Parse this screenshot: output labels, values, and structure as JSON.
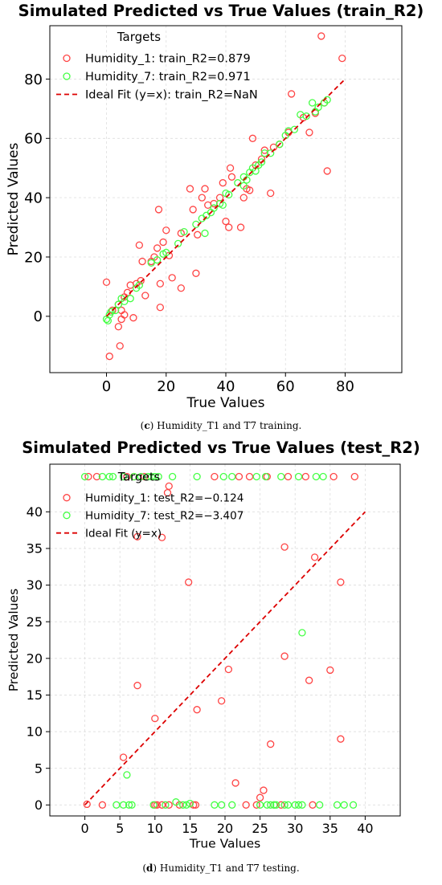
{
  "charts": [
    {
      "title": "Simulated Predicted vs True Values (train_R2)",
      "caption_letter": "c",
      "caption_text": " Humidity_T1 and T7 training.",
      "chart_data": {
        "type": "scatter",
        "title": "Simulated Predicted vs True Values (train_R2)",
        "xlabel": "True Values",
        "ylabel": "Predicted Values",
        "xlim": [
          -19,
          99
        ],
        "ylim": [
          -19,
          98
        ],
        "xticks": [
          0,
          20,
          40,
          60,
          80
        ],
        "yticks": [
          0,
          20,
          40,
          60,
          80
        ],
        "grid": true,
        "legend_title": "Targets",
        "legend_position": "top-left",
        "series": [
          {
            "name": "Humidity_1: train_R2=0.879",
            "color": "#ff4444",
            "marker": "open-circle",
            "points": [
              [
                0,
                11.5
              ],
              [
                1,
                -13.5
              ],
              [
                2,
                2
              ],
              [
                4,
                4
              ],
              [
                4,
                -3.5
              ],
              [
                4.5,
                -10
              ],
              [
                5,
                -1
              ],
              [
                5,
                2
              ],
              [
                6,
                6.5
              ],
              [
                6,
                0.5
              ],
              [
                7,
                8
              ],
              [
                8,
                10.5
              ],
              [
                9,
                -0.5
              ],
              [
                10,
                11
              ],
              [
                11,
                24
              ],
              [
                11.5,
                12
              ],
              [
                12,
                18.5
              ],
              [
                13,
                7
              ],
              [
                15,
                18.5
              ],
              [
                16,
                20
              ],
              [
                17,
                23
              ],
              [
                17.5,
                36
              ],
              [
                18,
                11
              ],
              [
                18,
                3
              ],
              [
                19,
                25
              ],
              [
                20,
                29
              ],
              [
                21,
                20.5
              ],
              [
                22,
                13
              ],
              [
                25,
                28
              ],
              [
                25,
                9.5
              ],
              [
                28,
                43
              ],
              [
                29,
                36
              ],
              [
                30,
                14.5
              ],
              [
                30.5,
                27.5
              ],
              [
                32,
                40
              ],
              [
                33,
                43
              ],
              [
                34,
                37.5
              ],
              [
                36,
                38
              ],
              [
                38,
                40
              ],
              [
                39,
                45
              ],
              [
                40,
                32
              ],
              [
                41,
                30
              ],
              [
                41.5,
                50
              ],
              [
                42,
                47
              ],
              [
                45,
                30
              ],
              [
                46,
                40
              ],
              [
                47,
                43
              ],
              [
                48,
                42.5
              ],
              [
                49,
                60
              ],
              [
                50,
                51
              ],
              [
                52,
                53
              ],
              [
                53,
                56
              ],
              [
                55,
                41.5
              ],
              [
                56,
                57
              ],
              [
                58,
                58
              ],
              [
                61,
                62
              ],
              [
                62,
                75
              ],
              [
                66,
                67
              ],
              [
                68,
                62
              ],
              [
                70,
                68.5
              ],
              [
                72,
                94.5
              ],
              [
                73,
                72
              ],
              [
                74,
                49
              ],
              [
                79,
                87
              ]
            ]
          },
          {
            "name": "Humidity_7: train_R2=0.971",
            "color": "#44ff44",
            "marker": "open-circle",
            "points": [
              [
                0,
                -1
              ],
              [
                0.5,
                -1.5
              ],
              [
                1,
                0.5
              ],
              [
                1.5,
                1.5
              ],
              [
                3,
                2
              ],
              [
                4,
                4
              ],
              [
                5,
                6
              ],
              [
                6,
                5
              ],
              [
                8,
                6
              ],
              [
                10,
                9.5
              ],
              [
                11,
                10.5
              ],
              [
                15,
                18
              ],
              [
                17,
                19
              ],
              [
                19,
                21
              ],
              [
                20,
                21.5
              ],
              [
                24,
                24.5
              ],
              [
                26,
                28.5
              ],
              [
                30,
                31
              ],
              [
                32,
                33
              ],
              [
                33,
                28
              ],
              [
                33.5,
                34
              ],
              [
                35,
                35
              ],
              [
                36,
                36.5
              ],
              [
                38,
                38
              ],
              [
                39,
                37.5
              ],
              [
                40,
                41.5
              ],
              [
                41,
                41
              ],
              [
                44,
                45
              ],
              [
                46,
                47
              ],
              [
                46,
                44
              ],
              [
                47,
                46
              ],
              [
                48,
                48.5
              ],
              [
                49,
                50
              ],
              [
                50,
                49
              ],
              [
                51,
                51
              ],
              [
                52,
                52
              ],
              [
                53,
                55
              ],
              [
                55,
                55
              ],
              [
                58,
                58
              ],
              [
                60,
                61
              ],
              [
                61,
                62.5
              ],
              [
                63,
                63
              ],
              [
                65,
                68
              ],
              [
                67,
                67.5
              ],
              [
                69,
                72
              ],
              [
                70,
                69
              ],
              [
                71,
                70.5
              ],
              [
                73,
                72
              ],
              [
                74,
                73
              ]
            ]
          },
          {
            "name": "Ideal Fit (y=x): train_R2=NaN",
            "color": "#dd0000",
            "style": "dashed-line",
            "points": [
              [
                0,
                0
              ],
              [
                80,
                80
              ]
            ]
          }
        ]
      }
    },
    {
      "title": "Simulated Predicted vs True Values (test_R2)",
      "caption_letter": "d",
      "caption_text": " Humidity_T1 and T7 testing.",
      "chart_data": {
        "type": "scatter",
        "title": "Simulated Predicted vs True Values (test_R2)",
        "xlabel": "True Values",
        "ylabel": "Predicted Values",
        "xlim": [
          -5,
          45
        ],
        "ylim": [
          -1.5,
          46.5
        ],
        "xticks": [
          0,
          5,
          10,
          15,
          20,
          25,
          30,
          35,
          40
        ],
        "yticks": [
          0,
          5,
          10,
          15,
          20,
          25,
          30,
          35,
          40
        ],
        "grid": true,
        "legend_title": "Targets",
        "legend_position": "top-left",
        "series": [
          {
            "name": "Humidity_1: test_R2=−0.124",
            "color": "#ff4444",
            "marker": "open-circle",
            "points": [
              [
                0.3,
                0.1
              ],
              [
                0.5,
                44.8
              ],
              [
                1.7,
                44.8
              ],
              [
                2.5,
                0
              ],
              [
                5.5,
                6.5
              ],
              [
                6,
                44.8
              ],
              [
                7,
                44.8
              ],
              [
                7.5,
                16.3
              ],
              [
                7.5,
                36.6
              ],
              [
                8.5,
                44.8
              ],
              [
                10,
                0
              ],
              [
                10,
                11.8
              ],
              [
                10.3,
                0
              ],
              [
                11,
                36.5
              ],
              [
                11,
                0
              ],
              [
                11.8,
                42.6
              ],
              [
                12,
                43.5
              ],
              [
                12,
                0
              ],
              [
                13.5,
                0
              ],
              [
                14.8,
                30.4
              ],
              [
                15.5,
                0
              ],
              [
                15.8,
                0
              ],
              [
                16,
                13
              ],
              [
                18.5,
                44.8
              ],
              [
                19.5,
                14.2
              ],
              [
                20.5,
                18.5
              ],
              [
                21.5,
                3
              ],
              [
                22,
                44.8
              ],
              [
                23,
                0
              ],
              [
                23.5,
                44.8
              ],
              [
                24.5,
                0
              ],
              [
                25,
                1
              ],
              [
                25.5,
                2
              ],
              [
                26,
                44.8
              ],
              [
                26.5,
                8.3
              ],
              [
                27,
                0
              ],
              [
                28,
                0
              ],
              [
                28.5,
                35.2
              ],
              [
                28.5,
                20.3
              ],
              [
                29,
                44.8
              ],
              [
                31.5,
                44.8
              ],
              [
                32,
                17
              ],
              [
                32.5,
                0
              ],
              [
                32.8,
                33.8
              ],
              [
                35,
                18.4
              ],
              [
                35.5,
                44.8
              ],
              [
                36.5,
                9
              ],
              [
                36.5,
                30.4
              ],
              [
                38.5,
                44.8
              ]
            ]
          },
          {
            "name": "Humidity_7: test_R2=−3.407",
            "color": "#44ff44",
            "marker": "open-circle",
            "points": [
              [
                0,
                44.8
              ],
              [
                2.5,
                44.8
              ],
              [
                3.5,
                44.8
              ],
              [
                4,
                44.8
              ],
              [
                4.5,
                0
              ],
              [
                5.5,
                44.8
              ],
              [
                5.5,
                0
              ],
              [
                6,
                4.1
              ],
              [
                6.3,
                0
              ],
              [
                6.7,
                0
              ],
              [
                7,
                44.8
              ],
              [
                8,
                44.8
              ],
              [
                9,
                44.8
              ],
              [
                9.5,
                44.8
              ],
              [
                9.8,
                0
              ],
              [
                10,
                44.8
              ],
              [
                10.5,
                44.8
              ],
              [
                11.5,
                0
              ],
              [
                12.5,
                44.8
              ],
              [
                13,
                0.4
              ],
              [
                14,
                0
              ],
              [
                14.5,
                0
              ],
              [
                15,
                0.2
              ],
              [
                16,
                44.8
              ],
              [
                18.5,
                0
              ],
              [
                19.5,
                0
              ],
              [
                19.8,
                44.8
              ],
              [
                21,
                0
              ],
              [
                21,
                44.8
              ],
              [
                24.5,
                44.8
              ],
              [
                25,
                0
              ],
              [
                25.8,
                44.8
              ],
              [
                26,
                0
              ],
              [
                26.5,
                0
              ],
              [
                27,
                0
              ],
              [
                27.3,
                0
              ],
              [
                28,
                44.8
              ],
              [
                28.5,
                0
              ],
              [
                29,
                0
              ],
              [
                30,
                0
              ],
              [
                30.5,
                44.8
              ],
              [
                30.5,
                0
              ],
              [
                31,
                23.5
              ],
              [
                31,
                0
              ],
              [
                33,
                44.8
              ],
              [
                33.5,
                0
              ],
              [
                34,
                44.8
              ],
              [
                36,
                0
              ],
              [
                37,
                0
              ],
              [
                38.3,
                0
              ]
            ]
          },
          {
            "name": "Ideal Fit (y=x)",
            "color": "#dd0000",
            "style": "dashed-line",
            "points": [
              [
                0,
                0
              ],
              [
                40,
                40
              ]
            ]
          }
        ]
      }
    }
  ]
}
